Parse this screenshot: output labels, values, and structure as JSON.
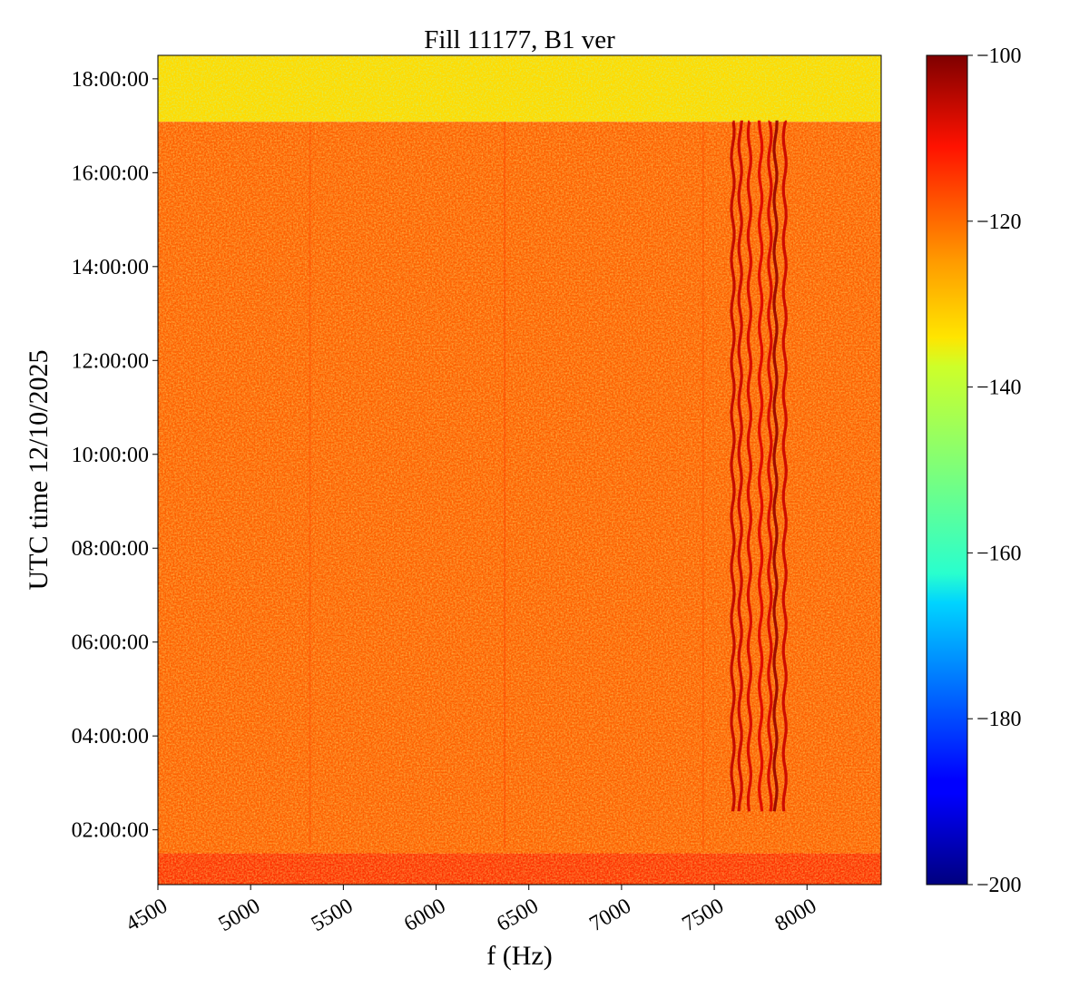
{
  "chart_data": {
    "type": "heatmap",
    "title": "Fill 11177, B1 ver",
    "xlabel": "f (Hz)",
    "ylabel": "UTC time 12/10/2025",
    "xlim": [
      4500,
      8400
    ],
    "xticks": [
      {
        "value": 4500,
        "label": "4500"
      },
      {
        "value": 5000,
        "label": "5000"
      },
      {
        "value": 5500,
        "label": "5500"
      },
      {
        "value": 6000,
        "label": "6000"
      },
      {
        "value": 6500,
        "label": "6500"
      },
      {
        "value": 7000,
        "label": "7000"
      },
      {
        "value": 7500,
        "label": "7500"
      },
      {
        "value": 8000,
        "label": "8000"
      }
    ],
    "ylim": [
      "00:50:00",
      "18:30:00"
    ],
    "yticks": [
      {
        "value": "02:00:00",
        "label": "02:00:00"
      },
      {
        "value": "04:00:00",
        "label": "04:00:00"
      },
      {
        "value": "06:00:00",
        "label": "06:00:00"
      },
      {
        "value": "08:00:00",
        "label": "08:00:00"
      },
      {
        "value": "10:00:00",
        "label": "10:00:00"
      },
      {
        "value": "12:00:00",
        "label": "12:00:00"
      },
      {
        "value": "14:00:00",
        "label": "14:00:00"
      },
      {
        "value": "16:00:00",
        "label": "16:00:00"
      },
      {
        "value": "18:00:00",
        "label": "18:00:00"
      }
    ],
    "colorbar": {
      "colormap": "jet",
      "range": [
        -200,
        -100
      ],
      "ticks": [
        {
          "value": -100,
          "label": "−100"
        },
        {
          "value": -120,
          "label": "−120"
        },
        {
          "value": -140,
          "label": "−140"
        },
        {
          "value": -160,
          "label": "−160"
        },
        {
          "value": -180,
          "label": "−180"
        },
        {
          "value": -200,
          "label": "−200"
        }
      ]
    },
    "regions": [
      {
        "t_start": "17:05:00",
        "t_end": "18:30:00",
        "level": -134,
        "note": ""
      },
      {
        "t_start": "01:30:00",
        "t_end": "17:05:00",
        "level": -122
      },
      {
        "t_start": "00:50:00",
        "t_end": "01:30:00",
        "level": -117
      }
    ],
    "lines": [
      {
        "f": 5320,
        "t_start": "01:30:00",
        "t_end": "17:05:00",
        "level": -120
      },
      {
        "f": 6370,
        "t_start": "01:30:00",
        "t_end": "17:05:00",
        "level": -119
      },
      {
        "f": 7440,
        "t_start": "01:30:00",
        "t_end": "17:05:00",
        "level": -120
      },
      {
        "f": 7600,
        "t_start": "02:20:00",
        "t_end": "17:05:00",
        "level": -106
      },
      {
        "f": 7640,
        "t_start": "02:20:00",
        "t_end": "17:05:00",
        "level": -107
      },
      {
        "f": 7690,
        "t_start": "02:20:00",
        "t_end": "17:05:00",
        "level": -108
      },
      {
        "f": 7750,
        "t_start": "02:20:00",
        "t_end": "17:05:00",
        "level": -109
      },
      {
        "f": 7800,
        "t_start": "02:20:00",
        "t_end": "17:05:00",
        "level": -108
      },
      {
        "f": 7830,
        "t_start": "02:20:00",
        "t_end": "17:05:00",
        "level": -102
      },
      {
        "f": 7880,
        "t_start": "02:20:00",
        "t_end": "17:05:00",
        "level": -107
      }
    ]
  }
}
